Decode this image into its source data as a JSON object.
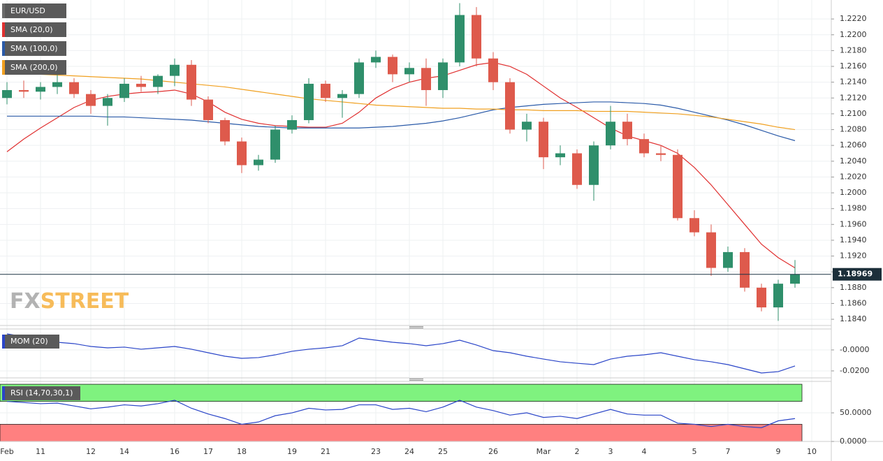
{
  "chart_data": {
    "type": "candlestick",
    "categories": [
      "Feb",
      null,
      "11",
      null,
      null,
      "12",
      null,
      "14",
      null,
      null,
      "16",
      null,
      "17",
      null,
      "18",
      null,
      null,
      "19",
      null,
      "21",
      null,
      null,
      "23",
      null,
      "24",
      null,
      "25",
      null,
      null,
      "26",
      null,
      null,
      "Mar",
      null,
      "2",
      null,
      "3",
      null,
      "4",
      null,
      null,
      "5",
      null,
      "7",
      null,
      null,
      "9",
      null,
      "10"
    ],
    "ohlc": {
      "name": "EUR/USD",
      "color": "#6b6b6b",
      "open": [
        1.212,
        1.213,
        1.2128,
        1.2134,
        1.214,
        1.2125,
        1.211,
        1.212,
        1.2138,
        1.2134,
        1.2148,
        1.2162,
        1.2118,
        1.2092,
        1.2065,
        1.2035,
        1.2042,
        1.208,
        1.2092,
        1.2138,
        1.212,
        1.2125,
        1.2165,
        1.2172,
        1.215,
        1.2158,
        1.213,
        1.2165,
        1.2225,
        1.217,
        1.214,
        1.208,
        1.209,
        1.2045,
        1.205,
        1.201,
        1.206,
        1.209,
        1.2068,
        1.205,
        1.2048,
        1.1968,
        1.195,
        1.1905,
        1.1925,
        1.188,
        1.1855,
        1.1885,
        null
      ],
      "high": [
        1.214,
        1.2142,
        1.214,
        1.215,
        1.2145,
        1.213,
        1.2125,
        1.2145,
        1.2148,
        1.215,
        1.217,
        1.2168,
        1.2122,
        1.2095,
        1.207,
        1.2048,
        1.2085,
        1.2098,
        1.2145,
        1.2142,
        1.213,
        1.217,
        1.218,
        1.2175,
        1.2165,
        1.217,
        1.217,
        1.224,
        1.2235,
        1.2178,
        1.2145,
        1.21,
        1.2095,
        1.206,
        1.2055,
        1.2065,
        1.211,
        1.21,
        1.2075,
        1.206,
        1.2055,
        1.1978,
        1.196,
        1.1932,
        1.193,
        1.1885,
        1.189,
        1.1915,
        null
      ],
      "low": [
        1.2112,
        1.212,
        1.2118,
        1.2125,
        1.212,
        1.21,
        1.2085,
        1.2115,
        1.2128,
        1.2125,
        1.2135,
        1.211,
        1.2088,
        1.206,
        1.2025,
        1.2028,
        1.2038,
        1.2075,
        1.2088,
        1.2115,
        1.2095,
        1.212,
        1.2158,
        1.214,
        1.214,
        1.211,
        1.212,
        1.216,
        1.216,
        1.213,
        1.2075,
        1.2065,
        1.203,
        1.2035,
        1.2005,
        1.199,
        1.2055,
        1.206,
        1.2045,
        1.204,
        1.1965,
        1.1945,
        1.1895,
        1.19,
        1.1875,
        1.185,
        1.1838,
        1.188,
        null
      ],
      "close": [
        1.213,
        1.2128,
        1.2134,
        1.214,
        1.2125,
        1.211,
        1.212,
        1.2138,
        1.2134,
        1.2148,
        1.2162,
        1.2118,
        1.2092,
        1.2065,
        1.2035,
        1.2042,
        1.208,
        1.2092,
        1.2138,
        1.212,
        1.2125,
        1.2165,
        1.2172,
        1.215,
        1.2158,
        1.213,
        1.2165,
        1.2225,
        1.217,
        1.214,
        1.208,
        1.209,
        1.2045,
        1.205,
        1.201,
        1.206,
        1.209,
        1.2068,
        1.205,
        1.2048,
        1.1968,
        1.195,
        1.1905,
        1.1925,
        1.188,
        1.1855,
        1.1885,
        1.18969,
        null
      ]
    },
    "up_color": "#2f8f6b",
    "down_color": "#de5a4c",
    "overlays": [
      {
        "name": "SMA (20,0)",
        "color": "#e03030",
        "values": [
          1.2052,
          1.2068,
          1.2082,
          1.2095,
          1.2108,
          1.2117,
          1.2122,
          1.2125,
          1.2127,
          1.2128,
          1.213,
          1.2125,
          1.2115,
          1.2102,
          1.2093,
          1.2088,
          1.2085,
          1.2084,
          1.2083,
          1.2083,
          1.2088,
          1.2102,
          1.212,
          1.2132,
          1.214,
          1.2145,
          1.2148,
          1.2155,
          1.2162,
          1.2165,
          1.216,
          1.215,
          1.2135,
          1.212,
          1.2108,
          1.2095,
          1.2082,
          1.2072,
          1.2066,
          1.206,
          1.205,
          1.2032,
          1.201,
          1.1985,
          1.196,
          1.1935,
          1.1918,
          1.1905,
          null
        ]
      },
      {
        "name": "SMA (100,0)",
        "color": "#2a5aa8",
        "values": [
          1.2097,
          1.2097,
          1.2097,
          1.2097,
          1.2097,
          1.2097,
          1.2096,
          1.2096,
          1.2095,
          1.2094,
          1.2093,
          1.2092,
          1.209,
          1.2088,
          1.2086,
          1.2084,
          1.2083,
          1.2082,
          1.2082,
          1.2082,
          1.2082,
          1.2082,
          1.2083,
          1.2084,
          1.2086,
          1.2088,
          1.2091,
          1.2095,
          1.21,
          1.2105,
          1.2108,
          1.211,
          1.2112,
          1.2113,
          1.2114,
          1.2115,
          1.2115,
          1.2114,
          1.2113,
          1.2111,
          1.2107,
          1.2102,
          1.2097,
          1.2092,
          1.2086,
          1.2079,
          1.2072,
          1.2066,
          null
        ]
      },
      {
        "name": "SMA (200,0)",
        "color": "#f0a020",
        "values": [
          1.2152,
          1.2151,
          1.215,
          1.2149,
          1.2148,
          1.2147,
          1.2146,
          1.2145,
          1.2144,
          1.2142,
          1.214,
          1.2138,
          1.2136,
          1.2134,
          1.2131,
          1.2128,
          1.2125,
          1.2122,
          1.2119,
          1.2117,
          1.2115,
          1.2113,
          1.2111,
          1.211,
          1.2109,
          1.2108,
          1.2107,
          1.2107,
          1.2106,
          1.2106,
          1.2105,
          1.2105,
          1.2104,
          1.2104,
          1.2104,
          1.2103,
          1.2103,
          1.2103,
          1.2102,
          1.2101,
          1.21,
          1.2098,
          1.2096,
          1.2093,
          1.209,
          1.2087,
          1.2083,
          1.208,
          null
        ]
      }
    ],
    "ylim": [
      1.1833,
      1.2244
    ],
    "yticks": [
      {
        "value": 1.184,
        "label": "1.1840"
      },
      {
        "value": 1.186,
        "label": "1.1860"
      },
      {
        "value": 1.188,
        "label": "1.1880"
      },
      {
        "value": 1.19,
        "label": "1.1900"
      },
      {
        "value": 1.192,
        "label": "1.1920"
      },
      {
        "value": 1.194,
        "label": "1.1940"
      },
      {
        "value": 1.196,
        "label": "1.1960"
      },
      {
        "value": 1.198,
        "label": "1.1980"
      },
      {
        "value": 1.2,
        "label": "1.2000"
      },
      {
        "value": 1.202,
        "label": "1.2020"
      },
      {
        "value": 1.204,
        "label": "1.2040"
      },
      {
        "value": 1.206,
        "label": "1.2060"
      },
      {
        "value": 1.208,
        "label": "1.2080"
      },
      {
        "value": 1.21,
        "label": "1.2100"
      },
      {
        "value": 1.212,
        "label": "1.2120"
      },
      {
        "value": 1.214,
        "label": "1.2140"
      },
      {
        "value": 1.216,
        "label": "1.2160"
      },
      {
        "value": 1.218,
        "label": "1.2180"
      },
      {
        "value": 1.22,
        "label": "1.2200"
      },
      {
        "value": 1.222,
        "label": "1.2220"
      }
    ],
    "grid": true,
    "watermark": [
      "FX",
      "STREET"
    ],
    "indicators": [
      {
        "type": "line",
        "name": "MOM (20)",
        "color": "#2a45c8",
        "values": [
          0.0153,
          0.0127,
          0.0087,
          0.0073,
          0.006,
          0.0033,
          0.002,
          0.0027,
          0.0007,
          0.002,
          0.0033,
          0.0007,
          -0.0027,
          -0.006,
          -0.008,
          -0.0073,
          -0.0047,
          -0.0013,
          0.0007,
          0.002,
          0.004,
          0.0113,
          0.0093,
          0.0073,
          0.006,
          0.004,
          0.006,
          0.0093,
          0.0047,
          -0.0007,
          -0.0027,
          -0.006,
          -0.0087,
          -0.0113,
          -0.0127,
          -0.014,
          -0.0087,
          -0.006,
          -0.0047,
          -0.0027,
          -0.006,
          -0.0093,
          -0.0113,
          -0.014,
          -0.018,
          -0.022,
          -0.0207,
          -0.0153,
          null
        ],
        "ylim": [
          -0.026,
          0.0193
        ],
        "yticks": [
          {
            "value": -0.02,
            "label": "-0.0200"
          },
          {
            "value": 0,
            "label": "-0.0000"
          }
        ]
      },
      {
        "type": "line",
        "name": "RSI (14,70,30,1)",
        "color": "#2a45c8",
        "values": [
          70,
          68,
          66,
          67,
          62,
          57,
          60,
          64,
          62,
          66,
          72,
          58,
          48,
          40,
          30,
          34,
          45,
          50,
          58,
          55,
          56,
          64,
          64,
          56,
          58,
          52,
          60,
          72,
          60,
          54,
          46,
          50,
          42,
          44,
          40,
          48,
          56,
          48,
          46,
          46,
          32,
          30,
          26,
          30,
          26,
          24,
          36,
          40,
          null
        ],
        "ylim": [
          0,
          105
        ],
        "yticks": [
          {
            "value": 0,
            "label": "0.0000"
          },
          {
            "value": 50,
            "label": "50.0000"
          }
        ],
        "bands": [
          {
            "from": 70,
            "to": 100,
            "color": "#7ff27f"
          },
          {
            "from": 0,
            "to": 30,
            "color": "#ff8080"
          }
        ]
      }
    ]
  }
}
